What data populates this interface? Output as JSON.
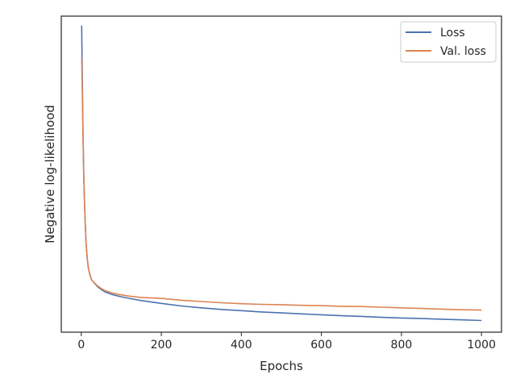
{
  "chart_data": {
    "type": "line",
    "xlabel": "Epochs",
    "ylabel": "Negative log-likelihood",
    "xlim": [
      -50,
      1050
    ],
    "ylim": [
      0.0,
      1.0
    ],
    "y_ticks_shown": false,
    "x_ticks": [
      0,
      200,
      400,
      600,
      800,
      1000
    ],
    "x_tick_labels": [
      "0",
      "200",
      "400",
      "600",
      "800",
      "1000"
    ],
    "grid": false,
    "legend_position": "upper-right",
    "series": [
      {
        "name": "Loss",
        "color": "#4c72b0",
        "x": [
          1,
          2,
          4,
          6,
          8,
          10,
          12,
          15,
          18,
          22,
          26,
          30,
          40,
          50,
          60,
          80,
          100,
          120,
          150,
          200,
          250,
          300,
          350,
          400,
          450,
          500,
          550,
          600,
          650,
          700,
          750,
          800,
          850,
          900,
          950,
          1000
        ],
        "y": [
          0.97,
          0.86,
          0.66,
          0.51,
          0.41,
          0.34,
          0.28,
          0.23,
          0.2,
          0.18,
          0.165,
          0.16,
          0.145,
          0.135,
          0.127,
          0.118,
          0.112,
          0.107,
          0.1,
          0.091,
          0.083,
          0.077,
          0.072,
          0.068,
          0.064,
          0.061,
          0.058,
          0.055,
          0.052,
          0.05,
          0.047,
          0.045,
          0.043,
          0.041,
          0.039,
          0.037
        ]
      },
      {
        "name": "Val. loss",
        "color": "#dd8452",
        "x": [
          1,
          2,
          4,
          6,
          8,
          10,
          12,
          15,
          18,
          22,
          26,
          30,
          40,
          50,
          60,
          80,
          100,
          120,
          150,
          200,
          250,
          300,
          350,
          400,
          450,
          500,
          550,
          600,
          650,
          700,
          750,
          800,
          850,
          900,
          950,
          1000
        ],
        "y": [
          0.87,
          0.8,
          0.64,
          0.5,
          0.41,
          0.34,
          0.28,
          0.23,
          0.2,
          0.18,
          0.165,
          0.16,
          0.147,
          0.138,
          0.131,
          0.123,
          0.118,
          0.114,
          0.11,
          0.107,
          0.101,
          0.097,
          0.093,
          0.09,
          0.088,
          0.087,
          0.085,
          0.084,
          0.082,
          0.081,
          0.079,
          0.077,
          0.075,
          0.073,
          0.071,
          0.07
        ]
      }
    ]
  }
}
